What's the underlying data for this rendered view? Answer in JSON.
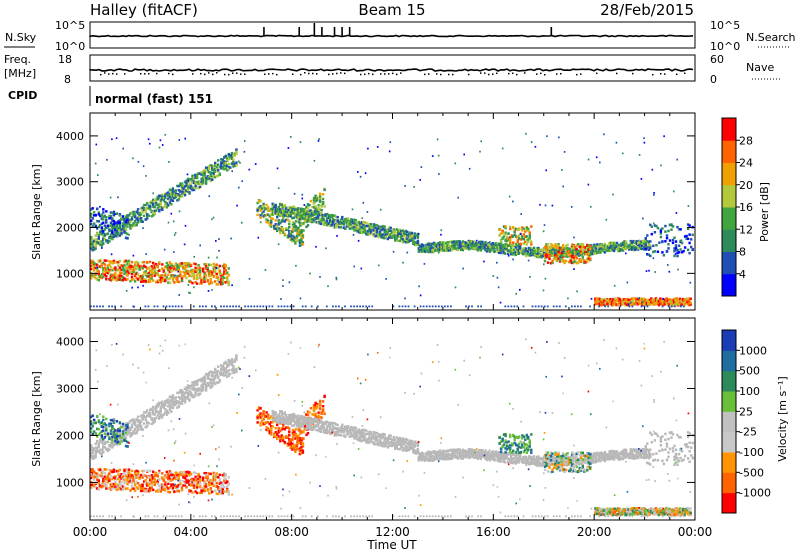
{
  "header": {
    "station": "Halley (fitACF)",
    "beam": "Beam 15",
    "date": "28/Feb/2015"
  },
  "strip_labels": {
    "nsky": "N.Sky",
    "nsky_top": "10^5",
    "nsky_bottom": "10^0",
    "nsearch": "N.Search",
    "nsearch_top": "10^5",
    "nsearch_bottom": "10^0",
    "freq": "Freq.",
    "freq_unit": "[MHz]",
    "freq_top": "18",
    "freq_bottom": "8",
    "nave": "Nave",
    "nave_top": "60",
    "nave_bottom": "0",
    "cpid": "CPID",
    "cpid_value": "normal (fast) 151"
  },
  "colors": {
    "power": [
      "#0000ff",
      "#1f4fb4",
      "#2d8a5a",
      "#3fa53f",
      "#b4c83c",
      "#f0a000",
      "#ff6400",
      "#ff0000"
    ],
    "velocity": [
      "#1a3cb4",
      "#1f6ea0",
      "#2d8a5a",
      "#6abf3a",
      "#c0c0c0",
      "#c8c8c8",
      "#ff9400",
      "#ff6400",
      "#ff0000"
    ],
    "ground_scatter": "#b8b8b8"
  },
  "chart_data": [
    {
      "type": "heatmap",
      "name": "power",
      "ylabel": "Slant Range [km]",
      "y_ticks": [
        "1000",
        "2000",
        "3000",
        "4000"
      ],
      "ylim": [
        200,
        4500
      ],
      "colorbar_label": "Power [dB]",
      "colorbar_ticks": [
        "4",
        "8",
        "12",
        "16",
        "20",
        "24",
        "28"
      ],
      "colorbar_range": [
        0,
        32
      ],
      "features": [
        {
          "t": [
            0.0,
            5.5
          ],
          "range": [
            700,
            1400
          ],
          "level": "high"
        },
        {
          "t": [
            0.0,
            5.8
          ],
          "range": [
            1400,
            3700
          ],
          "level": "medium"
        },
        {
          "t": [
            6.5,
            13.0
          ],
          "range": [
            1300,
            2900
          ],
          "level": "medium"
        },
        {
          "t": [
            13.0,
            22.0
          ],
          "range": [
            1200,
            2000
          ],
          "level": "medium"
        },
        {
          "t": [
            20.0,
            24.0
          ],
          "range": [
            200,
            600
          ],
          "level": "high"
        }
      ]
    },
    {
      "type": "heatmap",
      "name": "velocity",
      "ylabel": "Slant Range [km]",
      "y_ticks": [
        "1000",
        "2000",
        "3000",
        "4000"
      ],
      "ylim": [
        200,
        4500
      ],
      "colorbar_label": "Velocity [m s⁻¹]",
      "colorbar_ticks": [
        "1000",
        "500",
        "100",
        "25",
        "-25",
        "-100",
        "-500",
        "-1000"
      ],
      "x_ticks": [
        "00:00",
        "04:00",
        "08:00",
        "12:00",
        "16:00",
        "20:00",
        "00:00"
      ],
      "xlabel": "Time UT",
      "xlim": [
        0,
        24
      ]
    }
  ]
}
